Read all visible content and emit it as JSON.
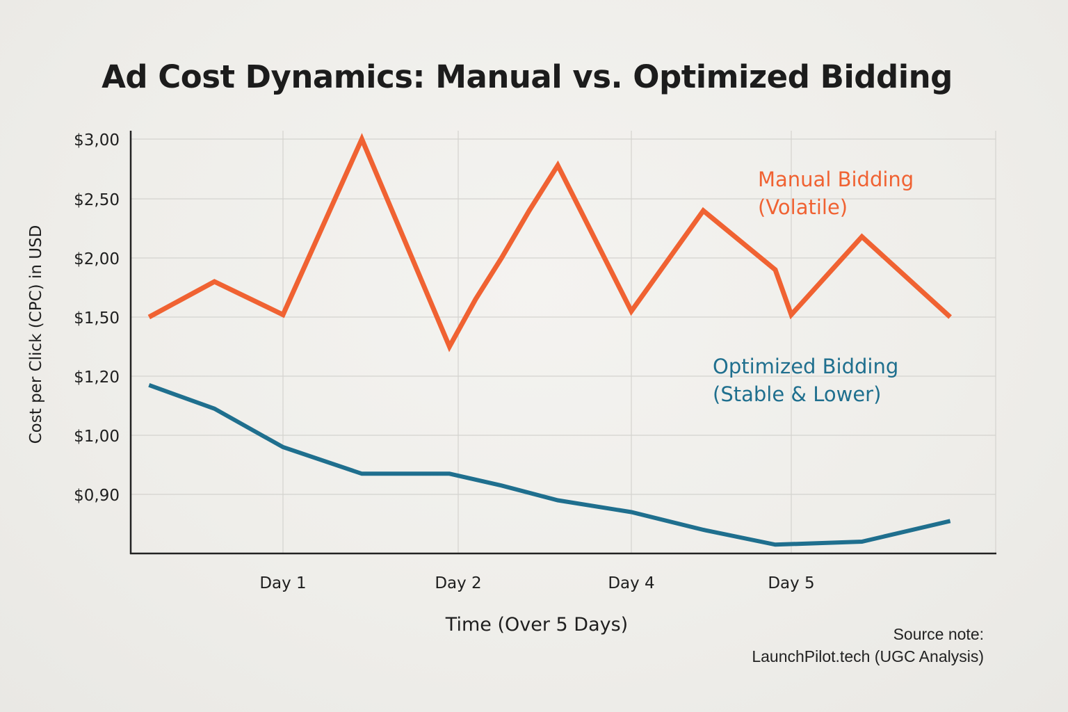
{
  "chart_data": {
    "type": "line",
    "title": "Ad Cost Dynamics: Manual vs. Optimized Bidding",
    "xlabel": "Time (Over 5 Days)",
    "ylabel": "Cost per Click (CPC) in USD",
    "y_ticks": [
      "$3,00",
      "$2,50",
      "$2,00",
      "$1,50",
      "$1,20",
      "$1,00",
      "$0,90"
    ],
    "x_ticks": [
      "Day 1",
      "Day 2",
      "Day 4",
      "Day 5"
    ],
    "grid": true,
    "series": [
      {
        "name": "Manual Bidding",
        "label_lines": [
          "Manual Bidding",
          "(Volatile)"
        ],
        "color": "#f06232",
        "points": [
          {
            "day": 0.12,
            "cpc": 1.5
          },
          {
            "day": 0.55,
            "cpc": 1.8
          },
          {
            "day": 1.0,
            "cpc": 1.52
          },
          {
            "day": 1.45,
            "cpc": 3.0
          },
          {
            "day": 1.95,
            "cpc": 1.35
          },
          {
            "day": 2.2,
            "cpc": 1.65
          },
          {
            "day": 2.5,
            "cpc": 2.0
          },
          {
            "day": 2.82,
            "cpc": 2.4
          },
          {
            "day": 3.15,
            "cpc": 2.78
          },
          {
            "day": 4.0,
            "cpc": 1.55
          },
          {
            "day": 4.45,
            "cpc": 2.4
          },
          {
            "day": 4.9,
            "cpc": 1.9
          },
          {
            "day": 5.0,
            "cpc": 1.52
          },
          {
            "day": 5.4,
            "cpc": 2.18
          },
          {
            "day": 5.9,
            "cpc": 1.5
          }
        ]
      },
      {
        "name": "Optimized Bidding",
        "label_lines": [
          "Optimized Bidding",
          "(Stable & Lower)"
        ],
        "color": "#1f6f8e",
        "points": [
          {
            "day": 0.12,
            "cpc": 1.17
          },
          {
            "day": 0.55,
            "cpc": 1.09
          },
          {
            "day": 1.0,
            "cpc": 0.98
          },
          {
            "day": 1.45,
            "cpc": 0.935
          },
          {
            "day": 1.95,
            "cpc": 0.935
          },
          {
            "day": 2.5,
            "cpc": 0.915
          },
          {
            "day": 3.15,
            "cpc": 0.89
          },
          {
            "day": 4.0,
            "cpc": 0.87
          },
          {
            "day": 4.45,
            "cpc": 0.84
          },
          {
            "day": 4.9,
            "cpc": 0.815
          },
          {
            "day": 5.4,
            "cpc": 0.82
          },
          {
            "day": 5.9,
            "cpc": 0.855
          }
        ]
      }
    ]
  },
  "source_note": {
    "line1": "Source note:",
    "line2": "LaunchPilot.tech (UGC Analysis)"
  }
}
